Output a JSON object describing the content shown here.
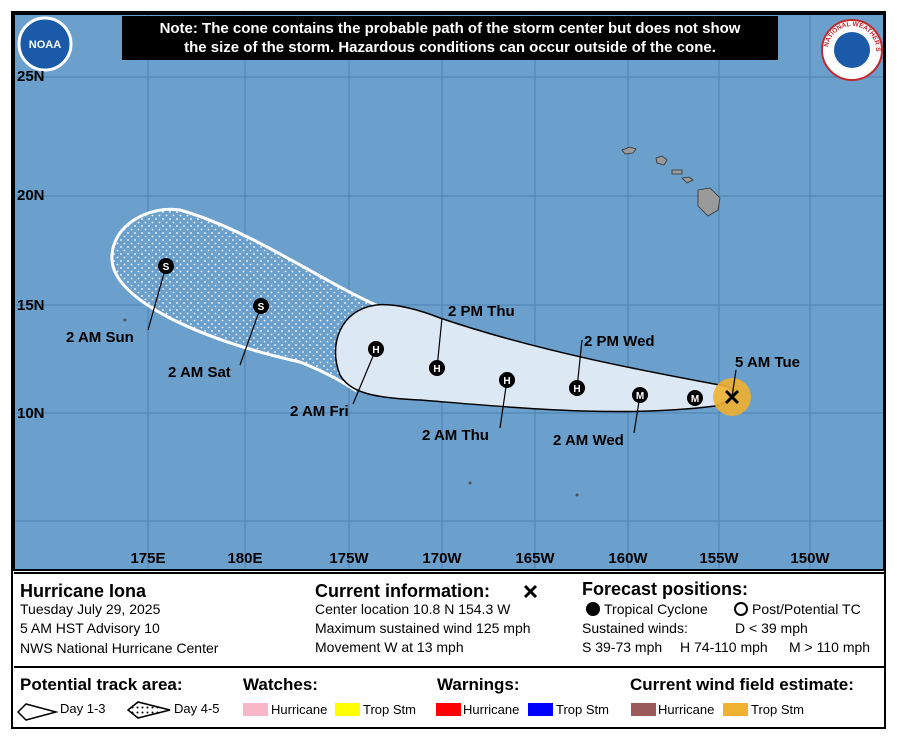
{
  "note": [
    "Note: The cone contains the probable path of the storm center but does not show",
    "the size of the storm. Hazardous conditions can occur outside of the cone."
  ],
  "logos": {
    "noaa": "NOAA",
    "nws": "NATIONAL WEATHER SERVICE"
  },
  "map": {
    "lat_labels": [
      "25N",
      "20N",
      "15N",
      "10N"
    ],
    "lon_labels": [
      "175E",
      "180E",
      "175W",
      "170W",
      "165W",
      "160W",
      "155W",
      "150W"
    ],
    "points": [
      {
        "symbol": "S",
        "label": "2 AM Sun"
      },
      {
        "symbol": "S",
        "label": "2 AM Sat"
      },
      {
        "symbol": "H",
        "label": "2 AM Fri"
      },
      {
        "symbol": "H",
        "label": "2 PM Thu"
      },
      {
        "symbol": "H",
        "label": "2 AM Thu"
      },
      {
        "symbol": "H",
        "label": "2 PM Wed"
      },
      {
        "symbol": "M",
        "label": "2 AM Wed"
      },
      {
        "symbol": "M",
        "label": null
      }
    ],
    "current_label": "5 AM Tue"
  },
  "storm": {
    "name": "Hurricane Iona",
    "date": "Tuesday July 29, 2025",
    "advisory": "5 AM HST Advisory 10",
    "source": "NWS National Hurricane Center"
  },
  "current": {
    "title": "Current information:",
    "lines": [
      "Center location 10.8 N 154.3 W",
      "Maximum sustained wind 125 mph",
      "Movement W at 13 mph"
    ]
  },
  "forecast": {
    "title": "Forecast positions:",
    "tropical": "Tropical Cyclone",
    "post": "Post/Potential TC",
    "winds_title": "Sustained winds:",
    "d": "D < 39 mph",
    "s": "S 39-73 mph",
    "h": "H 74-110 mph",
    "m": "M > 110 mph"
  },
  "legend": {
    "track_title": "Potential track area:",
    "day13": "Day 1-3",
    "day45": "Day 4-5",
    "watches_title": "Watches:",
    "watch_hurricane": "Hurricane",
    "watch_ts": "Trop Stm",
    "warnings_title": "Warnings:",
    "warn_hurricane": "Hurricane",
    "warn_ts": "Trop Stm",
    "wind_title": "Current wind field estimate:",
    "wind_hurricane": "Hurricane",
    "wind_ts": "Trop Stm"
  }
}
